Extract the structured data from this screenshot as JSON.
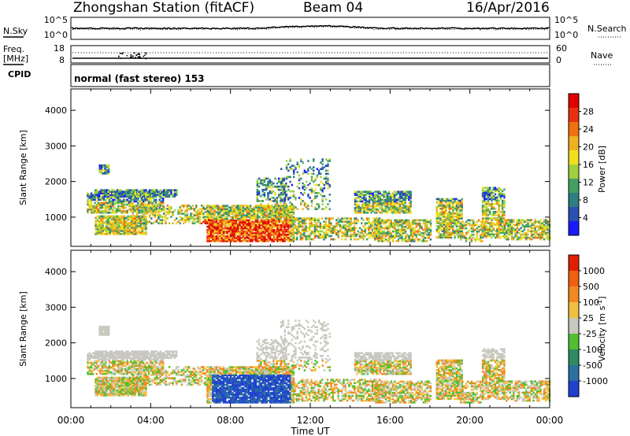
{
  "header": {
    "station": "Zhongshan Station (fitACF)",
    "beam": "Beam 04",
    "date": "16/Apr/2016"
  },
  "top_panels": {
    "nsky_label": "N.Sky",
    "nsearch_label": "N.Search",
    "noise_ticks": [
      "10^5",
      "10^0"
    ],
    "freq_label_1": "Freq.",
    "freq_label_2": "[MHz]",
    "freq_ticks": [
      "18",
      "8"
    ],
    "nave_label": "Nave",
    "nave_ticks": [
      "60",
      "0"
    ],
    "cpid_label": "CPID",
    "cpid_text": "normal (fast stereo) 153"
  },
  "x_axis": {
    "label": "Time UT",
    "ticks": [
      "00:00",
      "04:00",
      "08:00",
      "12:00",
      "16:00",
      "20:00",
      "00:00"
    ]
  },
  "chart_data": [
    {
      "type": "heatmap",
      "parameter": "power",
      "ylabel": "Slant Range [km]",
      "yticks": [
        "1000",
        "2000",
        "3000",
        "4000"
      ],
      "ylim": [
        180,
        4600
      ],
      "xlim_hours": [
        0,
        24
      ],
      "colorbar": {
        "label": "Power [dB]",
        "ticks": [
          "4",
          "8",
          "12",
          "16",
          "20",
          "24",
          "28"
        ],
        "colors": [
          "#1a1aff",
          "#2a50b0",
          "#2e7f80",
          "#44a060",
          "#a0d040",
          "#f0e020",
          "#f0b020",
          "#f07010",
          "#e83010",
          "#e00000"
        ]
      }
    },
    {
      "type": "heatmap",
      "parameter": "velocity",
      "ylabel": "Slant Range [km]",
      "yticks": [
        "1000",
        "2000",
        "3000",
        "4000"
      ],
      "ylim": [
        180,
        4600
      ],
      "xlim_hours": [
        0,
        24
      ],
      "colorbar": {
        "label": "Velocity [m s^-1]",
        "ticks": [
          "1000",
          "500",
          "100",
          "25",
          "-25",
          "-100",
          "-500",
          "-1000"
        ],
        "colors": [
          "#2040d0",
          "#2a70a0",
          "#2e8a60",
          "#50c030",
          "#c8c8c0",
          "#f0c040",
          "#f08a20",
          "#f06010",
          "#e02000"
        ]
      }
    }
  ]
}
